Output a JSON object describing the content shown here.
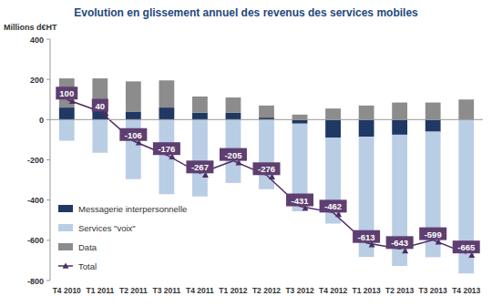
{
  "chart_data": {
    "type": "bar",
    "title": "Evolution en glissement annuel des revenus des services mobiles",
    "y_label": "Millions d€HT",
    "categories": [
      "T4 2010",
      "T1 2011",
      "T2 2011",
      "T3 2011",
      "T4 2011",
      "T1 2012",
      "T2 2012",
      "T3 2012",
      "T4 2012",
      "T1 2013",
      "T2 2013",
      "T3 2013",
      "T4 2013"
    ],
    "series": [
      {
        "name": "Messagerie interpersonnelle",
        "color": "#1f3864",
        "values": [
          60,
          55,
          40,
          60,
          35,
          35,
          10,
          -20,
          -90,
          -85,
          -75,
          -60,
          0
        ]
      },
      {
        "name": "Services \"voix\"",
        "color": "#b9cde5",
        "values": [
          -105,
          -165,
          -296,
          -371,
          -382,
          -315,
          -346,
          -436,
          -427,
          -598,
          -653,
          -624,
          -765
        ]
      },
      {
        "name": "Data",
        "color": "#8c8c8c",
        "values": [
          145,
          150,
          150,
          135,
          80,
          75,
          60,
          25,
          55,
          70,
          85,
          85,
          100
        ]
      },
      {
        "name": "Total",
        "type": "line",
        "color": "#4f2d63",
        "marker": "triangle",
        "data_labels": true,
        "values": [
          100,
          40,
          -106,
          -176,
          -267,
          -205,
          -276,
          -431,
          -462,
          -613,
          -643,
          -599,
          -665
        ]
      }
    ],
    "stacked": true,
    "ylim": [
      -800,
      400
    ],
    "yticks": [
      -800,
      -600,
      -400,
      -200,
      0,
      200,
      400
    ],
    "grid": false,
    "legend": "lower left"
  }
}
